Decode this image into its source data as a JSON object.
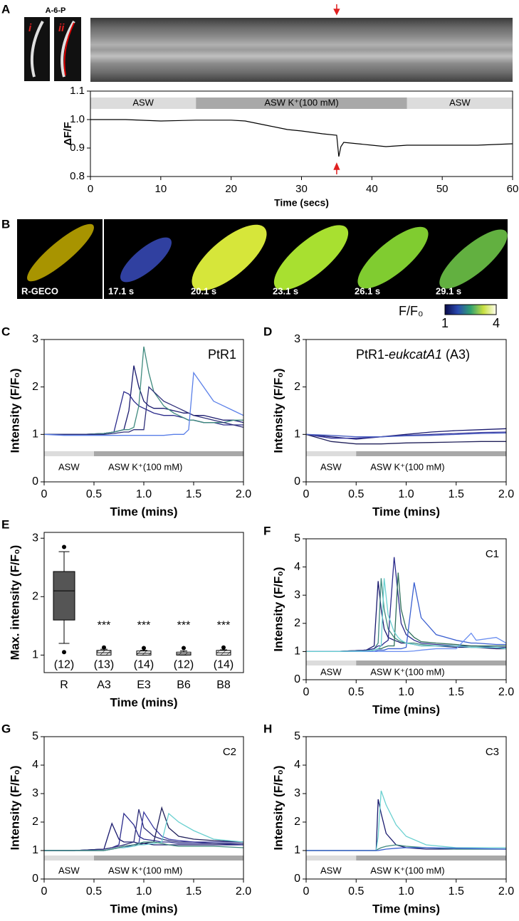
{
  "panel_A": {
    "letter": "A",
    "image_label": "A-6-P",
    "image_tags": [
      "i",
      "ii"
    ]
  },
  "panel_B": {
    "letter": "B",
    "frame_labels": [
      "R-GECO",
      "17.1 s",
      "20.1 s",
      "23.1 s",
      "26.1 s",
      "29.1 s"
    ],
    "colorbar": {
      "label": "F/F₀",
      "ticks": [
        1,
        4
      ]
    }
  },
  "chart_data": [
    {
      "type": "line",
      "xlabel": "Time (secs)",
      "ylabel": "ΔF/F",
      "xlim": [
        0,
        60
      ],
      "xticks": [
        0,
        10,
        20,
        30,
        40,
        50,
        60
      ],
      "ylim": [
        0.8,
        1.1
      ],
      "yticks": [
        0.8,
        0.9,
        {
          "value": 1,
          "label": "1.0"
        },
        1.1
      ],
      "bands": [
        {
          "label": "ASW",
          "start": 0,
          "end": 15,
          "color": "#dcdcdc"
        },
        {
          "label": "ASW K⁺(100 mM)",
          "start": 15,
          "end": 45,
          "color": "#a8a8a8"
        },
        {
          "label": "ASW",
          "start": 45,
          "end": 60,
          "color": "#dcdcdc"
        }
      ],
      "marker_x": 35,
      "x": [
        0,
        5,
        10,
        15,
        20,
        22,
        25,
        28,
        30,
        33,
        35,
        35.3,
        35.6,
        36,
        38,
        40,
        42,
        45,
        50,
        55,
        60
      ],
      "series": [
        {
          "color": "#000000",
          "values": [
            1.0,
            1.0,
            0.995,
            0.998,
            0.998,
            0.995,
            0.98,
            0.965,
            0.96,
            0.95,
            0.945,
            0.87,
            0.905,
            0.92,
            0.915,
            0.91,
            0.905,
            0.91,
            0.91,
            0.91,
            0.915
          ]
        }
      ]
    },
    {
      "type": "line",
      "panel": "C",
      "annotation": "PtR1",
      "xlabel": "Time (mins)",
      "ylabel": "Intensity (F/F₀)",
      "xlim": [
        0,
        2
      ],
      "xticks": [
        0,
        0.5,
        {
          "value": 1,
          "label": "1.0"
        },
        1.5,
        {
          "value": 2,
          "label": "2.0"
        }
      ],
      "ylim": [
        0,
        3
      ],
      "yticks": [
        0,
        1,
        2,
        3
      ],
      "bands": [
        {
          "label": "ASW",
          "start": 0,
          "end": 0.5,
          "color": "#dcdcdc"
        },
        {
          "label": "ASW K⁺(100 mM)",
          "start": 0.5,
          "end": 2,
          "color": "#a8a8a8"
        }
      ],
      "x": [
        0,
        0.2,
        0.4,
        0.6,
        0.7,
        0.8,
        0.85,
        0.9,
        0.95,
        1.0,
        1.05,
        1.1,
        1.2,
        1.3,
        1.4,
        1.45,
        1.5,
        1.6,
        1.7,
        1.8,
        1.9,
        2.0
      ],
      "series": [
        {
          "color": "#1a1a6e",
          "values": [
            1,
            1,
            1,
            1.02,
            1.05,
            1.1,
            1.5,
            2.45,
            2.0,
            1.7,
            1.6,
            1.55,
            1.55,
            1.5,
            1.45,
            1.45,
            1.4,
            1.4,
            1.35,
            1.3,
            1.3,
            1.25
          ]
        },
        {
          "color": "#2b2b8c",
          "values": [
            1,
            1,
            1,
            1.02,
            1.05,
            1.9,
            1.85,
            1.7,
            1.6,
            1.55,
            1.5,
            1.45,
            1.4,
            1.4,
            1.35,
            1.3,
            1.3,
            1.25,
            1.25,
            1.2,
            1.2,
            1.2
          ]
        },
        {
          "color": "#3f8a7e",
          "values": [
            1,
            1,
            1,
            1.02,
            1.05,
            1.1,
            1.1,
            1.15,
            1.6,
            2.85,
            2.3,
            1.9,
            1.6,
            1.45,
            1.35,
            1.3,
            1.3,
            1.25,
            1.25,
            1.25,
            1.3,
            1.3
          ]
        },
        {
          "color": "#30307a",
          "values": [
            1,
            1,
            1,
            1.0,
            1.02,
            1.05,
            1.05,
            1.1,
            1.1,
            1.1,
            2.0,
            1.9,
            1.7,
            1.6,
            1.5,
            1.45,
            1.4,
            1.35,
            1.3,
            1.25,
            1.2,
            1.15
          ]
        },
        {
          "color": "#5a7fe8",
          "values": [
            1,
            0.98,
            0.98,
            0.98,
            0.98,
            0.98,
            0.98,
            0.98,
            0.98,
            0.98,
            0.98,
            0.98,
            0.98,
            1.0,
            1.0,
            1.1,
            2.3,
            2.0,
            1.7,
            1.6,
            1.5,
            1.4
          ]
        }
      ]
    },
    {
      "type": "line",
      "panel": "D",
      "annotation": "PtR1-",
      "annotation_italic": "eukcatA1",
      "annotation_end": " (A3)",
      "xlabel": "Time (mins)",
      "ylabel": "Intensity (F/F₀)",
      "xlim": [
        0,
        2
      ],
      "xticks": [
        0,
        0.5,
        {
          "value": 1,
          "label": "1.0"
        },
        1.5,
        {
          "value": 2,
          "label": "2.0"
        }
      ],
      "ylim": [
        0,
        3
      ],
      "yticks": [
        0,
        1,
        2,
        3
      ],
      "bands": [
        {
          "label": "ASW",
          "start": 0,
          "end": 0.5,
          "color": "#dcdcdc"
        },
        {
          "label": "ASW K⁺(100 mM)",
          "start": 0.5,
          "end": 2,
          "color": "#a8a8a8"
        }
      ],
      "x": [
        0,
        0.25,
        0.5,
        0.75,
        1.0,
        1.25,
        1.5,
        1.75,
        2.0
      ],
      "series": [
        {
          "color": "#1a1a6e",
          "values": [
            1,
            0.95,
            0.9,
            0.95,
            1.0,
            1.05,
            1.08,
            1.1,
            1.12
          ]
        },
        {
          "color": "#3a3aa0",
          "values": [
            1,
            0.92,
            0.92,
            0.95,
            0.98,
            1.0,
            1.02,
            1.04,
            1.05
          ]
        },
        {
          "color": "#20205a",
          "values": [
            1,
            0.85,
            0.8,
            0.8,
            0.82,
            0.83,
            0.84,
            0.85,
            0.85
          ]
        },
        {
          "color": "#4a5fc0",
          "values": [
            1,
            0.98,
            0.95,
            0.95,
            0.97,
            0.98,
            1.0,
            1.02,
            1.03
          ]
        }
      ]
    },
    {
      "type": "box",
      "panel": "E",
      "xlabel": "Time (mins)",
      "ylabel": "Max. intensity (F/F₀)",
      "ylim": [
        0.7,
        3.1
      ],
      "yticks": [
        1,
        2,
        3
      ],
      "categories": [
        "R",
        "A3",
        "E3",
        "B6",
        "B8"
      ],
      "sig_labels": [
        null,
        "***",
        "***",
        "***",
        "***"
      ],
      "n_labels": [
        "(12)",
        "(13)",
        "(14)",
        "(12)",
        "(14)"
      ],
      "boxes": [
        {
          "whisker_low": 1.2,
          "q1": 1.6,
          "median": 2.1,
          "q3": 2.43,
          "whisker_high": 2.77,
          "outliers": [
            1.05,
            2.85
          ]
        },
        {
          "whisker_low": 1.0,
          "q1": 1.0,
          "median": 1.04,
          "q3": 1.08,
          "whisker_high": 1.1,
          "outliers": [
            1.13
          ]
        },
        {
          "whisker_low": 1.0,
          "q1": 1.0,
          "median": 1.03,
          "q3": 1.07,
          "whisker_high": 1.08,
          "outliers": [
            1.12
          ]
        },
        {
          "whisker_low": 1.0,
          "q1": 1.0,
          "median": 1.02,
          "q3": 1.05,
          "whisker_high": 1.07,
          "outliers": [
            1.12
          ]
        },
        {
          "whisker_low": 1.0,
          "q1": 1.0,
          "median": 1.04,
          "q3": 1.08,
          "whisker_high": 1.09,
          "outliers": [
            1.13
          ]
        }
      ]
    },
    {
      "type": "line",
      "panel": "F",
      "annotation": "C1",
      "xlabel": "Time (mins)",
      "ylabel": "Intensity (F/F₀)",
      "xlim": [
        0,
        2
      ],
      "xticks": [
        0,
        0.5,
        {
          "value": 1,
          "label": "1.0"
        },
        1.5,
        {
          "value": 2,
          "label": "2.0"
        }
      ],
      "ylim": [
        0,
        5
      ],
      "yticks": [
        0,
        1,
        2,
        3,
        4,
        5
      ],
      "bands": [
        {
          "label": "ASW",
          "start": 0,
          "end": 0.5,
          "color": "#dcdcdc"
        },
        {
          "label": "ASW K⁺(100 mM)",
          "start": 0.5,
          "end": 2,
          "color": "#a8a8a8"
        }
      ],
      "x": [
        0,
        0.3,
        0.6,
        0.68,
        0.72,
        0.75,
        0.78,
        0.82,
        0.88,
        0.92,
        0.95,
        1.0,
        1.08,
        1.15,
        1.3,
        1.5,
        1.65,
        1.7,
        1.9,
        2.0
      ],
      "series": [
        {
          "color": "#1a1a6e",
          "values": [
            1,
            1,
            1.05,
            1.2,
            3.5,
            2.5,
            1.8,
            1.5,
            1.4,
            1.35,
            1.3,
            1.3,
            1.25,
            1.2,
            1.2,
            1.15,
            1.15,
            1.15,
            1.1,
            1.1
          ]
        },
        {
          "color": "#3f8a7e",
          "values": [
            1,
            1,
            1.05,
            1.1,
            1.3,
            3.6,
            2.5,
            1.8,
            1.5,
            1.4,
            1.35,
            1.3,
            1.3,
            1.25,
            1.2,
            1.2,
            1.15,
            1.15,
            1.15,
            1.1
          ]
        },
        {
          "color": "#2b2b8c",
          "values": [
            1,
            1,
            1.05,
            1.1,
            1.2,
            1.2,
            1.3,
            1.4,
            4.35,
            3.0,
            2.0,
            1.6,
            1.4,
            1.3,
            1.25,
            1.2,
            1.2,
            1.2,
            1.15,
            1.15
          ]
        },
        {
          "color": "#2f6f5a",
          "values": [
            1,
            1,
            1.0,
            1.05,
            1.1,
            1.1,
            1.15,
            1.2,
            1.2,
            3.8,
            2.5,
            1.8,
            1.5,
            1.35,
            1.3,
            1.25,
            1.2,
            1.2,
            1.2,
            1.2
          ]
        },
        {
          "color": "#3a5fd0",
          "values": [
            1,
            1,
            1,
            1,
            1.05,
            1.05,
            1.05,
            1.1,
            1.1,
            1.1,
            1.1,
            1.15,
            3.45,
            2.2,
            1.6,
            1.4,
            1.3,
            1.3,
            1.25,
            1.25
          ]
        },
        {
          "color": "#6a8ef0",
          "values": [
            1,
            1,
            1,
            1,
            1,
            1,
            1,
            1,
            1,
            1,
            1,
            1,
            1.02,
            1.05,
            1.1,
            1.1,
            1.65,
            1.4,
            1.5,
            1.3
          ]
        },
        {
          "color": "#6ad0d0",
          "values": [
            1,
            1,
            1.02,
            1.05,
            1.1,
            1.2,
            3.6,
            2.3,
            1.7,
            1.5,
            1.4,
            1.3,
            1.25,
            1.2,
            1.2,
            1.2,
            1.15,
            1.15,
            1.15,
            1.1
          ]
        }
      ]
    },
    {
      "type": "line",
      "panel": "G",
      "annotation": "C2",
      "xlabel": "Time (mins)",
      "ylabel": "Intensity (F/F₀)",
      "xlim": [
        0,
        2
      ],
      "xticks": [
        0,
        0.5,
        {
          "value": 1,
          "label": "1.0"
        },
        1.5,
        {
          "value": 2,
          "label": "2.0"
        }
      ],
      "ylim": [
        0,
        5
      ],
      "yticks": [
        0,
        1,
        2,
        3,
        4,
        5
      ],
      "bands": [
        {
          "label": "ASW",
          "start": 0,
          "end": 0.5,
          "color": "#dcdcdc"
        },
        {
          "label": "ASW K⁺(100 mM)",
          "start": 0.5,
          "end": 2,
          "color": "#a8a8a8"
        }
      ],
      "x": [
        0,
        0.3,
        0.6,
        0.68,
        0.75,
        0.8,
        0.9,
        0.95,
        1.0,
        1.1,
        1.18,
        1.25,
        1.35,
        1.5,
        1.7,
        2.0
      ],
      "series": [
        {
          "color": "#1a1a6e",
          "values": [
            1,
            1,
            1.05,
            1.95,
            1.4,
            1.3,
            1.3,
            1.25,
            1.25,
            1.2,
            1.2,
            1.2,
            1.2,
            1.2,
            1.2,
            1.2
          ]
        },
        {
          "color": "#2b2b8c",
          "values": [
            1,
            1,
            1.05,
            1.1,
            1.2,
            2.3,
            1.9,
            1.5,
            1.4,
            1.35,
            1.3,
            1.3,
            1.25,
            1.25,
            1.25,
            1.2
          ]
        },
        {
          "color": "#30307a",
          "values": [
            1,
            1,
            1.05,
            1.1,
            1.15,
            1.2,
            1.3,
            2.45,
            1.8,
            1.5,
            1.4,
            1.35,
            1.3,
            1.3,
            1.25,
            1.25
          ]
        },
        {
          "color": "#3a3aa0",
          "values": [
            1,
            1,
            1.0,
            1.05,
            1.1,
            1.1,
            1.2,
            1.25,
            2.35,
            1.8,
            1.5,
            1.4,
            1.35,
            1.3,
            1.3,
            1.3
          ]
        },
        {
          "color": "#20205a",
          "values": [
            1,
            1,
            1.0,
            1.05,
            1.1,
            1.15,
            1.2,
            1.2,
            1.25,
            1.3,
            2.5,
            1.8,
            1.5,
            1.4,
            1.35,
            1.3
          ]
        },
        {
          "color": "#6ad0d0",
          "values": [
            1,
            1,
            1.0,
            1.05,
            1.1,
            1.1,
            1.15,
            1.2,
            1.2,
            1.25,
            1.3,
            2.3,
            2.0,
            1.7,
            1.4,
            1.3
          ]
        },
        {
          "color": "#3f8a7e",
          "values": [
            1,
            1,
            1.0,
            1.05,
            1.1,
            1.15,
            1.2,
            1.25,
            1.3,
            1.3,
            1.25,
            1.2,
            1.15,
            1.15,
            1.15,
            1.1
          ]
        }
      ]
    },
    {
      "type": "line",
      "panel": "H",
      "annotation": "C3",
      "xlabel": "Time (mins)",
      "ylabel": "Intensity (F/F₀)",
      "xlim": [
        0,
        2
      ],
      "xticks": [
        0,
        0.5,
        {
          "value": 1,
          "label": "1.0"
        },
        1.5,
        {
          "value": 2,
          "label": "2.0"
        }
      ],
      "ylim": [
        0,
        5
      ],
      "yticks": [
        0,
        1,
        2,
        3,
        4,
        5
      ],
      "bands": [
        {
          "label": "ASW",
          "start": 0,
          "end": 0.5,
          "color": "#dcdcdc"
        },
        {
          "label": "ASW K⁺(100 mM)",
          "start": 0.5,
          "end": 2,
          "color": "#a8a8a8"
        }
      ],
      "x": [
        0,
        0.3,
        0.6,
        0.7,
        0.72,
        0.75,
        0.8,
        0.9,
        1.0,
        1.2,
        1.5,
        2.0
      ],
      "series": [
        {
          "color": "#1a1a6e",
          "values": [
            1,
            1,
            1,
            1.0,
            2.8,
            2.3,
            1.6,
            1.2,
            1.1,
            1.05,
            1.05,
            1.05
          ]
        },
        {
          "color": "#6ad0d0",
          "values": [
            1,
            1,
            1,
            1.0,
            1.5,
            3.1,
            2.6,
            1.9,
            1.5,
            1.2,
            1.1,
            1.1
          ]
        },
        {
          "color": "#3f8a7e",
          "values": [
            1,
            1,
            1,
            1.0,
            1.05,
            1.1,
            1.15,
            1.2,
            1.15,
            1.1,
            1.05,
            1.05
          ]
        },
        {
          "color": "#3a5fd0",
          "values": [
            1,
            1,
            1,
            1.0,
            1.0,
            1.02,
            1.05,
            1.08,
            1.1,
            1.1,
            1.08,
            1.05
          ]
        }
      ]
    }
  ]
}
